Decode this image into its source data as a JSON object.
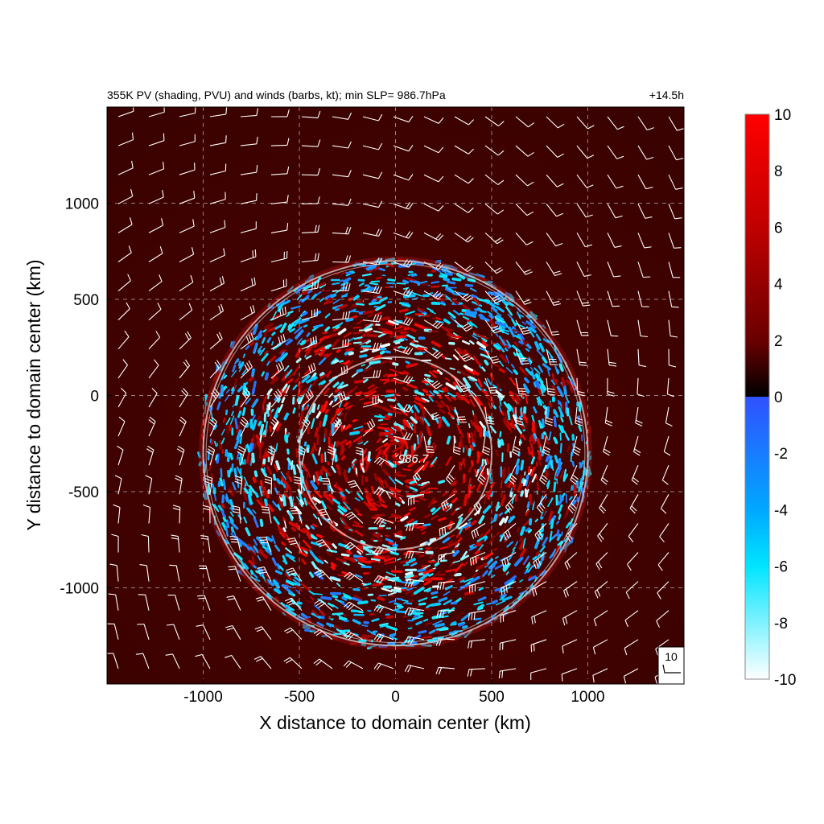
{
  "chart_data": {
    "type": "heatmap",
    "title": "355K PV (shading, PVU) and winds (barbs, kt); min SLP=  986.7hPa",
    "time_label": "+14.5h",
    "xlabel": "X distance to domain center (km)",
    "ylabel": "Y distance to domain center (km)",
    "xlim": [
      -1500,
      1500
    ],
    "ylim": [
      -1500,
      1500
    ],
    "x_ticks": [
      -1000,
      -500,
      0,
      500,
      1000
    ],
    "y_ticks": [
      1000,
      500,
      0,
      -500,
      -1000
    ],
    "x_tick_labels": [
      "-1000",
      "-500",
      "0",
      "500",
      "1000"
    ],
    "y_tick_labels": [
      "1000",
      "500",
      "0",
      "-500",
      "-1000"
    ],
    "grid": true,
    "colorbar": {
      "range": [
        -10,
        10
      ],
      "ticks": [
        10,
        8,
        6,
        4,
        2,
        0,
        -2,
        -4,
        -6,
        -8,
        -10
      ],
      "tick_labels": [
        "10",
        "8",
        "6",
        "4",
        "2",
        "0",
        "-2",
        "-4",
        "-6",
        "-8",
        "-10"
      ],
      "colors": {
        "max": "#ff0000",
        "mid_pos": "#800000",
        "zero": "#000000",
        "zero_neg": "#3050ff",
        "mid_neg": "#00e5ff",
        "min": "#ffffff"
      }
    },
    "storm_center": {
      "x": 0,
      "y": -300,
      "label": "986.7"
    },
    "range_rings_km": [
      500,
      1000
    ],
    "disturbed_radius_km": 1000,
    "background_pv": 2,
    "reference_barb_label": "10"
  }
}
